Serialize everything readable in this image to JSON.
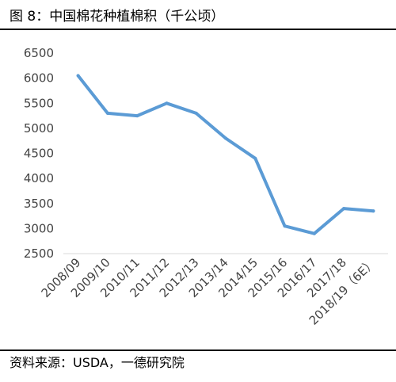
{
  "header": {
    "title": "图 8：中国棉花种植棉积（千公顷）"
  },
  "footer": {
    "source": "资料来源：USDA，一德研究院"
  },
  "chart_data": {
    "type": "line",
    "title": "图 8：中国棉花种植棉积（千公顷）",
    "xlabel": "",
    "ylabel": "",
    "categories": [
      "2008/09",
      "2009/10",
      "2010/11",
      "2011/12",
      "2012/13",
      "2013/14",
      "2014/15",
      "2015/16",
      "2016/17",
      "2017/18",
      "2018/19（6E）"
    ],
    "series": [
      {
        "values": [
          6050,
          5300,
          5250,
          5500,
          5300,
          4800,
          4400,
          3050,
          2900,
          3400,
          3350
        ]
      }
    ],
    "ylim": [
      2500,
      6500
    ],
    "yticks": [
      2500,
      3000,
      3500,
      4000,
      4500,
      5000,
      5500,
      6000,
      6500
    ],
    "grid": false,
    "legend": "none",
    "line_color": "#5B9BD5"
  }
}
